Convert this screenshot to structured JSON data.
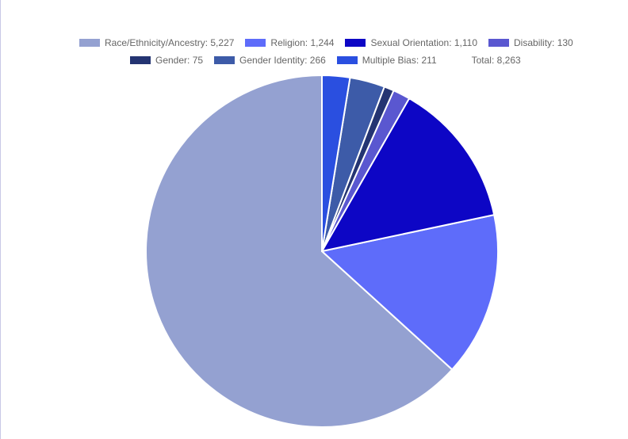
{
  "chart_data": {
    "type": "pie",
    "slices": [
      {
        "label": "Race/Ethnicity/Ancestry",
        "value": 5227,
        "legend_text": "Race/Ethnicity/Ancestry: 5,227",
        "color": "#94A1D1"
      },
      {
        "label": "Religion",
        "value": 1244,
        "legend_text": "Religion: 1,244",
        "color": "#5E6CFA"
      },
      {
        "label": "Sexual Orientation",
        "value": 1110,
        "legend_text": "Sexual Orientation: 1,110",
        "color": "#0D06C5"
      },
      {
        "label": "Disability",
        "value": 130,
        "legend_text": "Disability: 130",
        "color": "#5A57D0"
      },
      {
        "label": "Gender",
        "value": 75,
        "legend_text": "Gender: 75",
        "color": "#243472"
      },
      {
        "label": "Gender Identity",
        "value": 266,
        "legend_text": "Gender Identity: 266",
        "color": "#3D5BA8"
      },
      {
        "label": "Multiple Bias",
        "value": 211,
        "legend_text": "Multiple Bias: 211",
        "color": "#2A4FE0"
      }
    ],
    "total_text": "Total: 8,263",
    "legend_position": "top",
    "drawing_order": "counterclockwise from top",
    "slice_border_color": "#ffffff"
  }
}
